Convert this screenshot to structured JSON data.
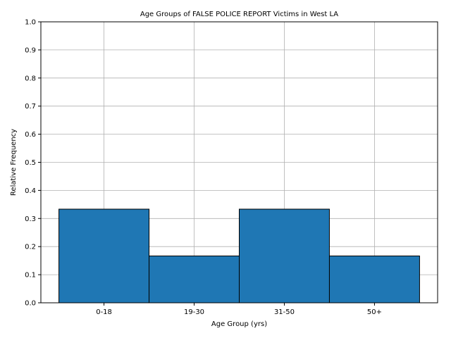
{
  "chart_data": {
    "type": "bar",
    "title": "Age Groups of FALSE POLICE REPORT Victims in West LA",
    "xlabel": "Age Group (yrs)",
    "ylabel": "Relative Frequency",
    "categories": [
      "0-18",
      "19-30",
      "31-50",
      "50+"
    ],
    "values": [
      0.3333,
      0.1667,
      0.3333,
      0.1667
    ],
    "ylim": [
      0,
      1
    ],
    "yticks": [
      "0.0",
      "0.1",
      "0.2",
      "0.3",
      "0.4",
      "0.5",
      "0.6",
      "0.7",
      "0.8",
      "0.9",
      "1.0"
    ],
    "grid": true,
    "bar_color": "#1f77b4",
    "edge_color": "#000000"
  }
}
